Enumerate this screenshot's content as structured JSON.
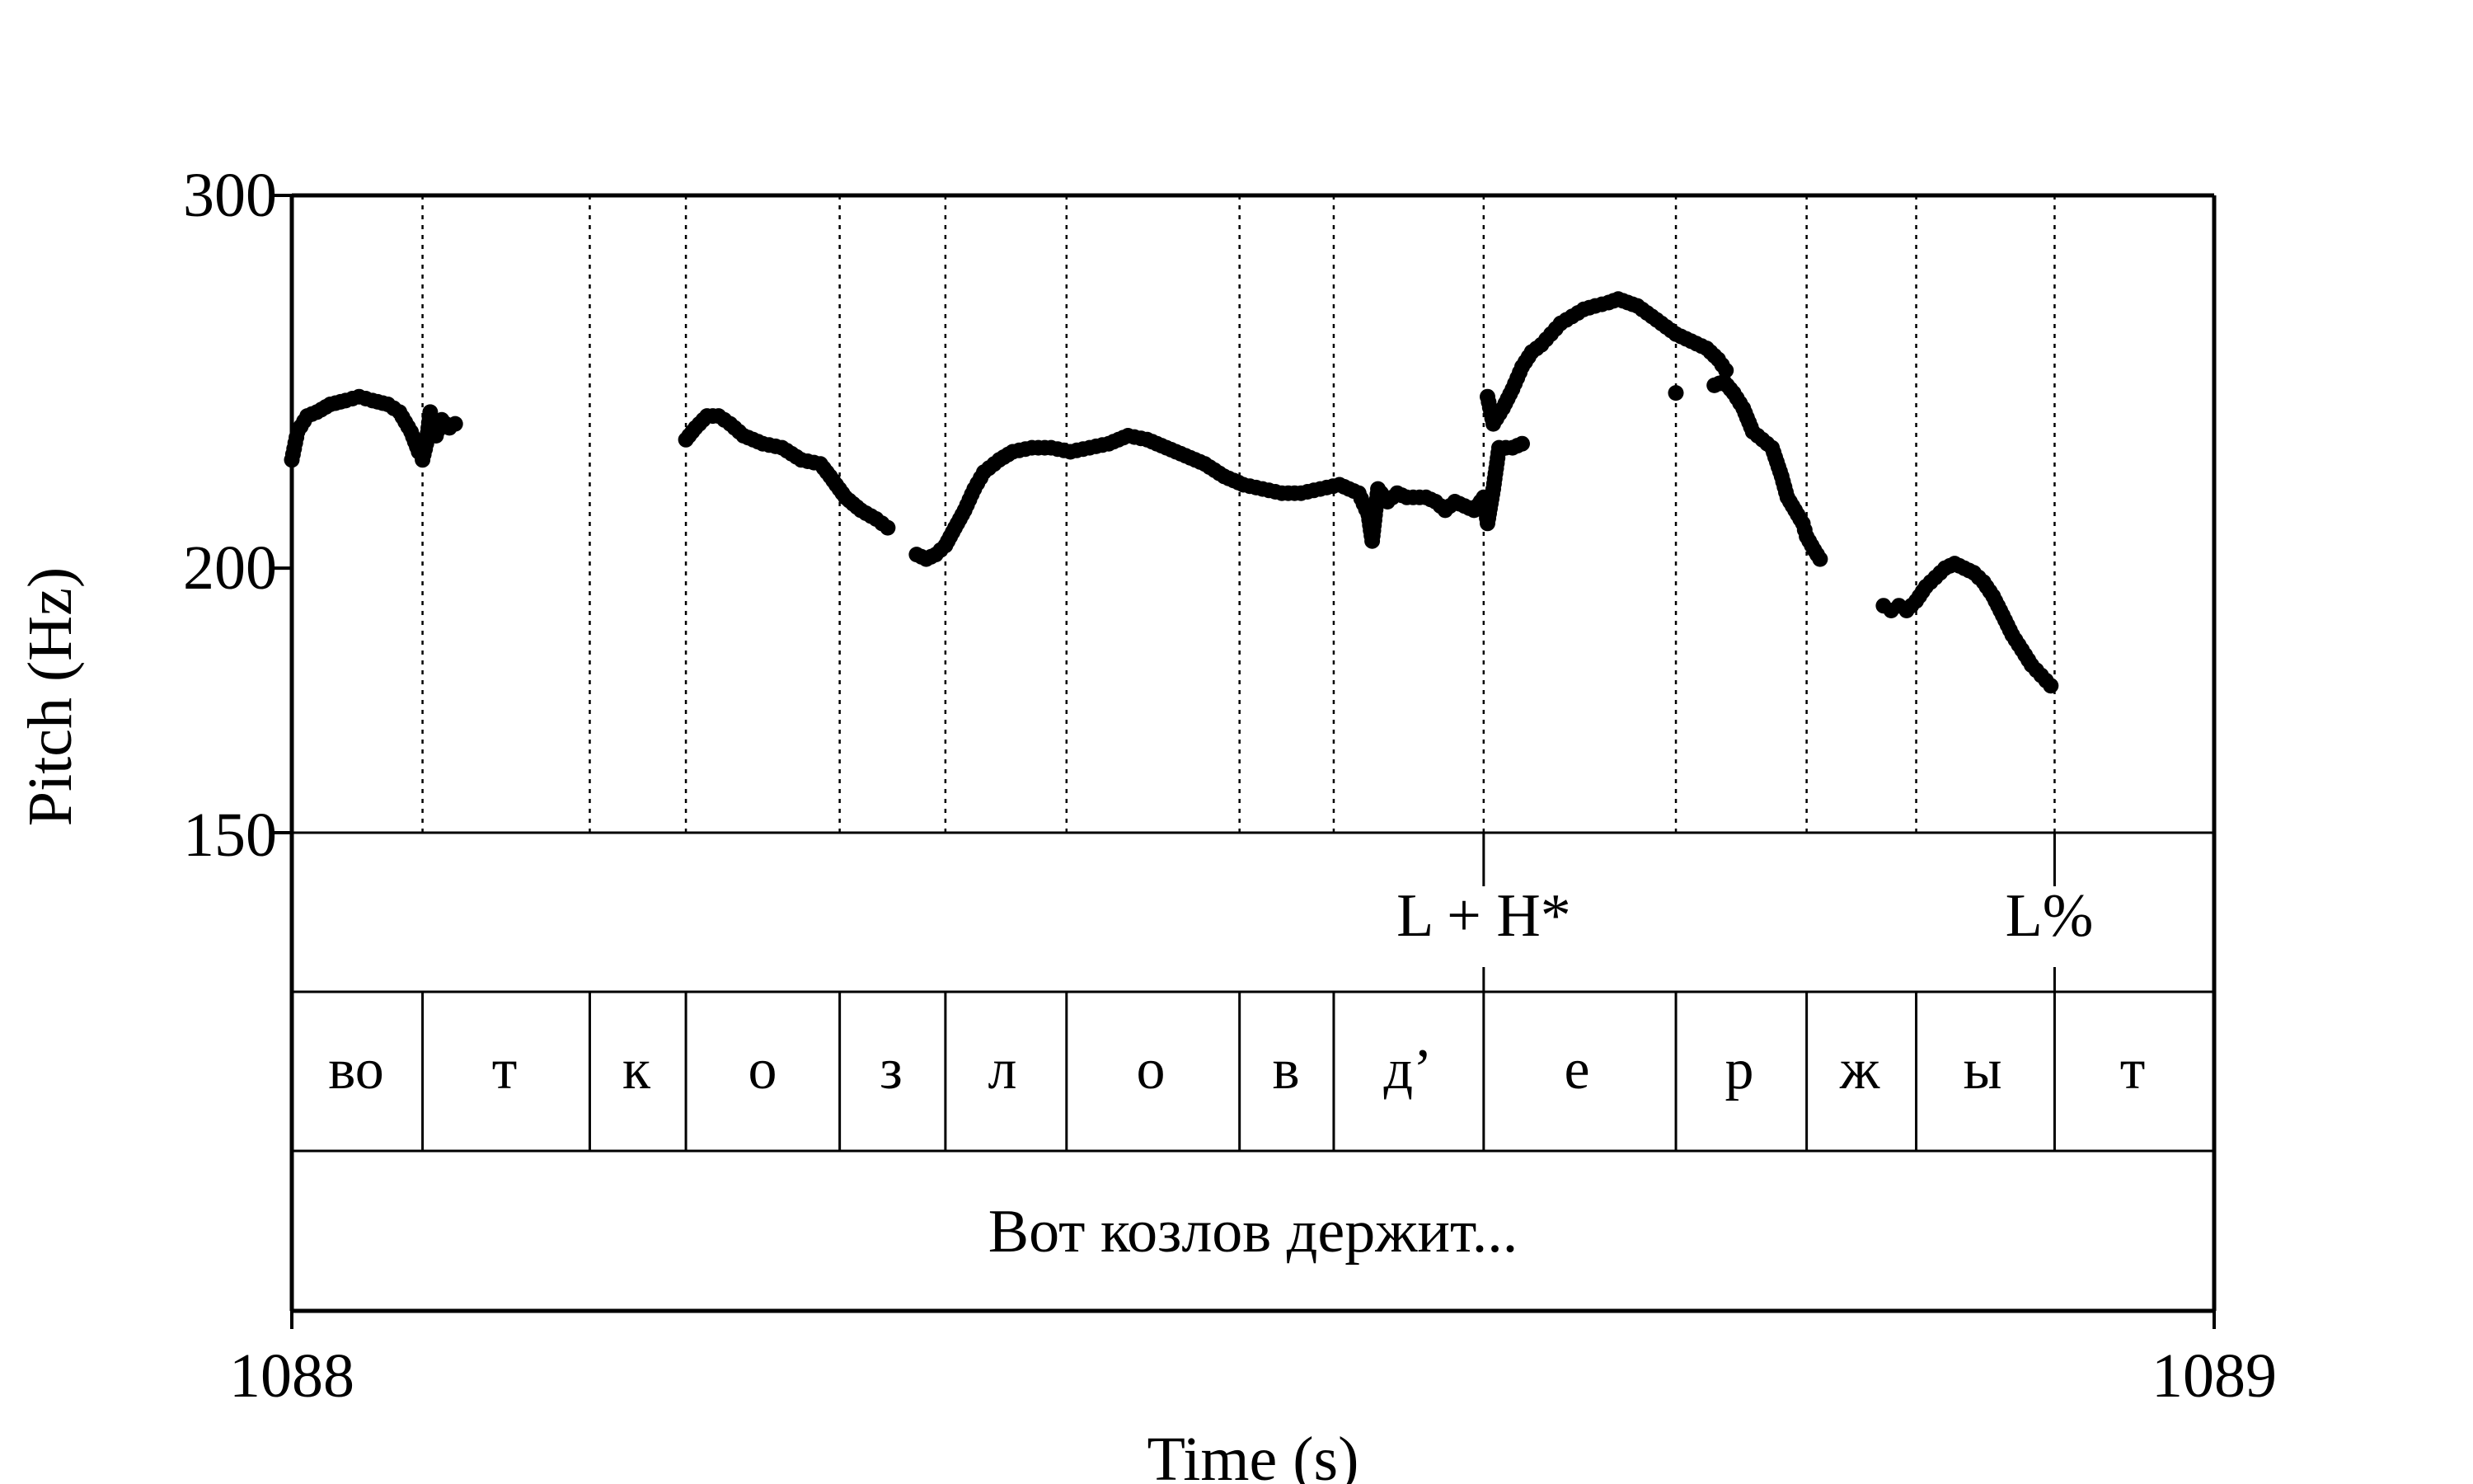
{
  "chart_data": {
    "type": "scatter",
    "ylabel": "Pitch (Hz)",
    "xlabel": "Time (s)",
    "xlim": [
      1088,
      1089
    ],
    "ylim": [
      150,
      300
    ],
    "y_scale": "log",
    "y_ticks": [
      "300",
      "200",
      "150"
    ],
    "x_ticks": [
      "1088",
      "1089"
    ],
    "boundary_line_style": "dotted",
    "point_color": "#000000",
    "pitch_points": [
      [
        1088.0,
        225
      ],
      [
        1088.003,
        232
      ],
      [
        1088.008,
        236
      ],
      [
        1088.013,
        237
      ],
      [
        1088.02,
        239
      ],
      [
        1088.028,
        240
      ],
      [
        1088.035,
        241
      ],
      [
        1088.042,
        240
      ],
      [
        1088.05,
        239
      ],
      [
        1088.056,
        237
      ],
      [
        1088.062,
        232
      ],
      [
        1088.066,
        227
      ],
      [
        1088.068,
        225
      ],
      [
        1088.07,
        229
      ],
      [
        1088.072,
        237
      ],
      [
        1088.075,
        231
      ],
      [
        1088.078,
        235
      ],
      [
        1088.082,
        233
      ],
      [
        1088.085,
        234
      ],
      [
        1088.205,
        230
      ],
      [
        1088.21,
        233
      ],
      [
        1088.216,
        236
      ],
      [
        1088.222,
        236
      ],
      [
        1088.228,
        234
      ],
      [
        1088.235,
        231
      ],
      [
        1088.245,
        229
      ],
      [
        1088.255,
        228
      ],
      [
        1088.265,
        225
      ],
      [
        1088.275,
        224
      ],
      [
        1088.28,
        221
      ],
      [
        1088.288,
        216
      ],
      [
        1088.296,
        213
      ],
      [
        1088.304,
        211
      ],
      [
        1088.31,
        209
      ],
      [
        1088.325,
        203
      ],
      [
        1088.33,
        202
      ],
      [
        1088.335,
        203
      ],
      [
        1088.34,
        205
      ],
      [
        1088.345,
        209
      ],
      [
        1088.35,
        213
      ],
      [
        1088.355,
        218
      ],
      [
        1088.36,
        222
      ],
      [
        1088.368,
        225
      ],
      [
        1088.375,
        227
      ],
      [
        1088.385,
        228
      ],
      [
        1088.395,
        228
      ],
      [
        1088.405,
        227
      ],
      [
        1088.415,
        228
      ],
      [
        1088.425,
        229
      ],
      [
        1088.435,
        231
      ],
      [
        1088.445,
        230
      ],
      [
        1088.455,
        228
      ],
      [
        1088.465,
        226
      ],
      [
        1088.475,
        224
      ],
      [
        1088.485,
        221
      ],
      [
        1088.495,
        219
      ],
      [
        1088.505,
        218
      ],
      [
        1088.515,
        217
      ],
      [
        1088.525,
        217
      ],
      [
        1088.535,
        218
      ],
      [
        1088.545,
        219
      ],
      [
        1088.555,
        217
      ],
      [
        1088.56,
        212
      ],
      [
        1088.562,
        206
      ],
      [
        1088.565,
        218
      ],
      [
        1088.57,
        215
      ],
      [
        1088.575,
        217
      ],
      [
        1088.58,
        216
      ],
      [
        1088.59,
        216
      ],
      [
        1088.595,
        215
      ],
      [
        1088.6,
        213
      ],
      [
        1088.605,
        215
      ],
      [
        1088.61,
        214
      ],
      [
        1088.615,
        213
      ],
      [
        1088.62,
        216
      ],
      [
        1088.622,
        210
      ],
      [
        1088.625,
        218
      ],
      [
        1088.628,
        228
      ],
      [
        1088.635,
        228
      ],
      [
        1088.64,
        229
      ],
      [
        1088.622,
        241
      ],
      [
        1088.625,
        234
      ],
      [
        1088.63,
        238
      ],
      [
        1088.635,
        243
      ],
      [
        1088.64,
        249
      ],
      [
        1088.645,
        253
      ],
      [
        1088.65,
        255
      ],
      [
        1088.655,
        258
      ],
      [
        1088.66,
        261
      ],
      [
        1088.666,
        263
      ],
      [
        1088.672,
        265
      ],
      [
        1088.678,
        266
      ],
      [
        1088.685,
        267
      ],
      [
        1088.69,
        268
      ],
      [
        1088.695,
        267
      ],
      [
        1088.7,
        266
      ],
      [
        1088.705,
        264
      ],
      [
        1088.71,
        262
      ],
      [
        1088.715,
        260
      ],
      [
        1088.72,
        258
      ],
      [
        1088.728,
        256
      ],
      [
        1088.736,
        254
      ],
      [
        1088.742,
        251
      ],
      [
        1088.746,
        248
      ],
      [
        1088.72,
        242
      ],
      [
        1088.74,
        244
      ],
      [
        1088.745,
        245
      ],
      [
        1088.75,
        242
      ],
      [
        1088.755,
        238
      ],
      [
        1088.76,
        232
      ],
      [
        1088.765,
        230
      ],
      [
        1088.77,
        228
      ],
      [
        1088.775,
        221
      ],
      [
        1088.778,
        216
      ],
      [
        1088.782,
        213
      ],
      [
        1088.786,
        210
      ],
      [
        1088.788,
        207
      ],
      [
        1088.792,
        204
      ],
      [
        1088.795,
        202
      ],
      [
        1088.828,
        192
      ],
      [
        1088.832,
        191
      ],
      [
        1088.836,
        192
      ],
      [
        1088.84,
        191
      ],
      [
        1088.845,
        193
      ],
      [
        1088.85,
        196
      ],
      [
        1088.855,
        198
      ],
      [
        1088.86,
        200
      ],
      [
        1088.865,
        201
      ],
      [
        1088.87,
        200
      ],
      [
        1088.875,
        199
      ],
      [
        1088.88,
        197
      ],
      [
        1088.885,
        194
      ],
      [
        1088.89,
        190
      ],
      [
        1088.895,
        186
      ],
      [
        1088.9,
        183
      ],
      [
        1088.905,
        180
      ],
      [
        1088.91,
        178
      ],
      [
        1088.915,
        176
      ]
    ],
    "segment_boundaries": [
      1088.068,
      1088.155,
      1088.205,
      1088.285,
      1088.34,
      1088.403,
      1088.493,
      1088.542,
      1088.62,
      1088.72,
      1088.788,
      1088.845,
      1088.917
    ],
    "segments": [
      "во",
      "т",
      "к",
      "о",
      "з",
      "л",
      "о",
      "в",
      "д’",
      "е",
      "р",
      "ж",
      "ы",
      "т"
    ],
    "tones": [
      {
        "label": "L + H*",
        "time": 1088.62
      },
      {
        "label": "L%",
        "time": 1088.917
      }
    ],
    "utterance": "Вот козлов держит..."
  }
}
